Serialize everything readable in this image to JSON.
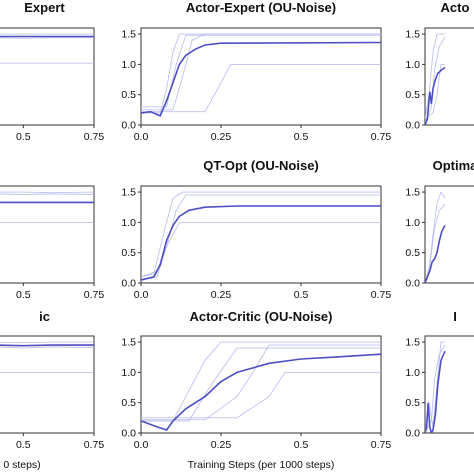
{
  "chart_data": [
    {
      "type": "line",
      "title": "Expert",
      "xticks": [
        "0.5",
        "0.75"
      ],
      "xlim": [
        0.4,
        0.75
      ],
      "ylim": [
        0,
        1.6
      ],
      "series": [
        {
          "role": "runs",
          "x": [
            0.4,
            0.5,
            0.6,
            0.75
          ],
          "y": [
            1.5,
            1.5,
            1.5,
            1.5
          ]
        },
        {
          "role": "runs",
          "x": [
            0.4,
            0.5,
            0.6,
            0.75
          ],
          "y": [
            1.44,
            1.43,
            1.44,
            1.44
          ]
        },
        {
          "role": "runs",
          "x": [
            0.4,
            0.5,
            0.6,
            0.75
          ],
          "y": [
            1.02,
            1.02,
            1.02,
            1.02
          ]
        },
        {
          "role": "mean",
          "x": [
            0.4,
            0.5,
            0.6,
            0.75
          ],
          "y": [
            1.46,
            1.46,
            1.46,
            1.46
          ]
        }
      ]
    },
    {
      "type": "line",
      "title": "Actor-Expert (OU-Noise)",
      "xticks": [
        "0.0",
        "0.25",
        "0.5",
        "0.75"
      ],
      "yticks": [
        "0.0",
        "0.5",
        "1.0",
        "1.5"
      ],
      "xlim": [
        0,
        0.75
      ],
      "ylim": [
        0,
        1.6
      ],
      "series": [
        {
          "role": "runs",
          "x": [
            0,
            0.06,
            0.08,
            0.1,
            0.12,
            0.15,
            0.75
          ],
          "y": [
            0.2,
            0.2,
            0.6,
            1.2,
            1.5,
            1.5,
            1.5
          ]
        },
        {
          "role": "runs",
          "x": [
            0,
            0.1,
            0.13,
            0.16,
            0.2,
            0.75
          ],
          "y": [
            0.25,
            0.25,
            0.8,
            1.4,
            1.5,
            1.5
          ]
        },
        {
          "role": "runs",
          "x": [
            0,
            0.2,
            0.24,
            0.28,
            0.75
          ],
          "y": [
            0.22,
            0.22,
            0.6,
            1.0,
            1.0
          ]
        },
        {
          "role": "runs",
          "x": [
            0,
            0.08,
            0.11,
            0.14,
            0.75
          ],
          "y": [
            0.3,
            0.3,
            1.0,
            1.48,
            1.48
          ]
        },
        {
          "role": "mean",
          "x": [
            0,
            0.03,
            0.06,
            0.08,
            0.1,
            0.12,
            0.14,
            0.17,
            0.2,
            0.25,
            0.75
          ],
          "y": [
            0.2,
            0.22,
            0.15,
            0.4,
            0.7,
            1.0,
            1.15,
            1.25,
            1.32,
            1.35,
            1.36
          ]
        }
      ]
    },
    {
      "type": "line",
      "title": "Acto",
      "yticks": [
        "0.0",
        "0.5",
        "1.0",
        "1.5"
      ],
      "xlim": [
        0,
        0.75
      ],
      "ylim": [
        0,
        1.6
      ],
      "series": [
        {
          "role": "runs",
          "x": [
            0,
            0.05,
            0.1,
            0.15,
            0.2,
            0.25
          ],
          "y": [
            0.1,
            0.5,
            1.2,
            1.5,
            1.5,
            1.5
          ]
        },
        {
          "role": "runs",
          "x": [
            0,
            0.08,
            0.12,
            0.18,
            0.25
          ],
          "y": [
            0.05,
            0.3,
            0.9,
            1.3,
            1.45
          ]
        },
        {
          "role": "runs",
          "x": [
            0,
            0.1,
            0.15,
            0.2,
            0.25
          ],
          "y": [
            0.1,
            0.2,
            0.5,
            1.0,
            1.0
          ]
        },
        {
          "role": "mean",
          "x": [
            0,
            0.03,
            0.06,
            0.08,
            0.1,
            0.13,
            0.16,
            0.2,
            0.25
          ],
          "y": [
            0.0,
            0.1,
            0.55,
            0.35,
            0.6,
            0.75,
            0.85,
            0.9,
            0.95
          ]
        }
      ]
    },
    {
      "type": "line",
      "title": "",
      "xticks": [
        "0.5",
        "0.75"
      ],
      "xlim": [
        0.4,
        0.75
      ],
      "ylim": [
        0,
        1.6
      ],
      "series": [
        {
          "role": "runs",
          "x": [
            0.4,
            0.5,
            0.6,
            0.75
          ],
          "y": [
            1.5,
            1.5,
            1.49,
            1.5
          ]
        },
        {
          "role": "runs",
          "x": [
            0.4,
            0.5,
            0.6,
            0.75
          ],
          "y": [
            1.47,
            1.46,
            1.47,
            1.46
          ]
        },
        {
          "role": "runs",
          "x": [
            0.4,
            0.5,
            0.6,
            0.75
          ],
          "y": [
            1.0,
            1.0,
            1.0,
            1.0
          ]
        },
        {
          "role": "mean",
          "x": [
            0.4,
            0.5,
            0.6,
            0.75
          ],
          "y": [
            1.33,
            1.33,
            1.33,
            1.33
          ]
        }
      ]
    },
    {
      "type": "line",
      "title": "QT-Opt (OU-Noise)",
      "xticks": [
        "0.0",
        "0.25",
        "0.5",
        "0.75"
      ],
      "yticks": [
        "0.0",
        "0.5",
        "1.0",
        "1.5"
      ],
      "xlim": [
        0,
        0.75
      ],
      "ylim": [
        0,
        1.6
      ],
      "series": [
        {
          "role": "runs",
          "x": [
            0,
            0.04,
            0.07,
            0.1,
            0.13,
            0.75
          ],
          "y": [
            0.1,
            0.15,
            0.8,
            1.4,
            1.5,
            1.5
          ]
        },
        {
          "role": "runs",
          "x": [
            0,
            0.05,
            0.08,
            0.11,
            0.14,
            0.75
          ],
          "y": [
            0.05,
            0.1,
            0.6,
            1.2,
            1.45,
            1.45
          ]
        },
        {
          "role": "runs",
          "x": [
            0,
            0.05,
            0.08,
            0.12,
            0.75
          ],
          "y": [
            0.1,
            0.2,
            0.6,
            1.0,
            1.0
          ]
        },
        {
          "role": "mean",
          "x": [
            0,
            0.04,
            0.06,
            0.08,
            0.1,
            0.12,
            0.15,
            0.2,
            0.3,
            0.75
          ],
          "y": [
            0.05,
            0.1,
            0.3,
            0.7,
            0.95,
            1.1,
            1.2,
            1.25,
            1.27,
            1.27
          ]
        }
      ]
    },
    {
      "type": "line",
      "title": "Optima",
      "yticks": [
        "0.0",
        "0.5",
        "1.0",
        "1.5"
      ],
      "xlim": [
        0,
        0.75
      ],
      "ylim": [
        0,
        1.6
      ],
      "series": [
        {
          "role": "runs",
          "x": [
            0,
            0.05,
            0.1,
            0.15,
            0.2,
            0.25
          ],
          "y": [
            0.0,
            0.2,
            0.8,
            1.3,
            1.5,
            1.4
          ]
        },
        {
          "role": "runs",
          "x": [
            0,
            0.06,
            0.12,
            0.18,
            0.25
          ],
          "y": [
            0.0,
            0.3,
            0.9,
            1.2,
            1.3
          ]
        },
        {
          "role": "mean",
          "x": [
            0,
            0.03,
            0.06,
            0.09,
            0.12,
            0.15,
            0.18,
            0.21,
            0.25
          ],
          "y": [
            0.0,
            0.1,
            0.2,
            0.35,
            0.4,
            0.5,
            0.7,
            0.85,
            0.95
          ]
        }
      ]
    },
    {
      "type": "line",
      "title": "ic",
      "xticks": [
        "0.5",
        "0.75"
      ],
      "xlabel": "0 steps)",
      "xlim": [
        0.4,
        0.75
      ],
      "ylim": [
        0,
        1.6
      ],
      "series": [
        {
          "role": "runs",
          "x": [
            0.4,
            0.5,
            0.6,
            0.75
          ],
          "y": [
            1.5,
            1.49,
            1.5,
            1.5
          ]
        },
        {
          "role": "runs",
          "x": [
            0.4,
            0.5,
            0.6,
            0.75
          ],
          "y": [
            1.42,
            1.4,
            1.42,
            1.41
          ]
        },
        {
          "role": "runs",
          "x": [
            0.4,
            0.5,
            0.6,
            0.75
          ],
          "y": [
            1.0,
            1.0,
            1.0,
            1.0
          ]
        },
        {
          "role": "mean",
          "x": [
            0.4,
            0.5,
            0.6,
            0.75
          ],
          "y": [
            1.45,
            1.44,
            1.45,
            1.45
          ]
        }
      ]
    },
    {
      "type": "line",
      "title": "Actor-Critic (OU-Noise)",
      "xticks": [
        "0.0",
        "0.25",
        "0.5",
        "0.75"
      ],
      "yticks": [
        "0.0",
        "0.5",
        "1.0",
        "1.5"
      ],
      "xlabel": "Training Steps (per 1000 steps)",
      "xlim": [
        0,
        0.75
      ],
      "ylim": [
        0,
        1.6
      ],
      "series": [
        {
          "role": "runs",
          "x": [
            0,
            0.1,
            0.15,
            0.2,
            0.25,
            0.75
          ],
          "y": [
            0.2,
            0.2,
            0.7,
            1.2,
            1.5,
            1.5
          ]
        },
        {
          "role": "runs",
          "x": [
            0,
            0.2,
            0.3,
            0.35,
            0.4,
            0.75
          ],
          "y": [
            0.22,
            0.22,
            0.6,
            1.0,
            1.45,
            1.45
          ]
        },
        {
          "role": "runs",
          "x": [
            0,
            0.3,
            0.4,
            0.45,
            0.75
          ],
          "y": [
            0.25,
            0.25,
            0.6,
            1.0,
            1.0
          ]
        },
        {
          "role": "runs",
          "x": [
            0,
            0.15,
            0.22,
            0.3,
            0.75
          ],
          "y": [
            0.2,
            0.2,
            0.8,
            1.4,
            1.4
          ]
        },
        {
          "role": "mean",
          "x": [
            0,
            0.05,
            0.08,
            0.1,
            0.12,
            0.14,
            0.2,
            0.25,
            0.3,
            0.4,
            0.5,
            0.6,
            0.75
          ],
          "y": [
            0.2,
            0.1,
            0.05,
            0.2,
            0.3,
            0.4,
            0.6,
            0.85,
            1.0,
            1.15,
            1.22,
            1.25,
            1.3
          ]
        }
      ]
    },
    {
      "type": "line",
      "title": "I",
      "yticks": [
        "0.0",
        "0.5",
        "1.0",
        "1.5"
      ],
      "xlim": [
        0,
        0.75
      ],
      "ylim": [
        0,
        1.6
      ],
      "series": [
        {
          "role": "runs",
          "x": [
            0,
            0.05,
            0.1,
            0.15,
            0.2,
            0.25
          ],
          "y": [
            0.0,
            0.5,
            0.1,
            0.8,
            1.5,
            1.5
          ]
        },
        {
          "role": "runs",
          "x": [
            0,
            0.08,
            0.12,
            0.18,
            0.25
          ],
          "y": [
            0.0,
            0.2,
            0.9,
            1.3,
            1.45
          ]
        },
        {
          "role": "mean",
          "x": [
            0,
            0.02,
            0.04,
            0.06,
            0.08,
            0.1,
            0.13,
            0.16,
            0.2,
            0.25
          ],
          "y": [
            0.0,
            0.1,
            0.5,
            0.1,
            0.0,
            0.05,
            0.3,
            0.8,
            1.2,
            1.35
          ]
        }
      ]
    }
  ]
}
